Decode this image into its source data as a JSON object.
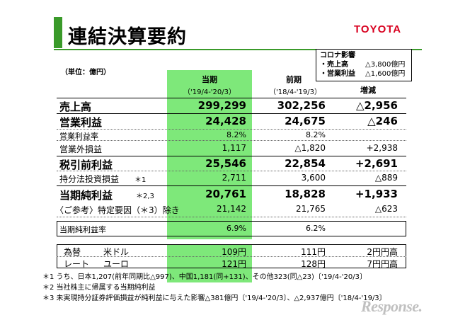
{
  "title": "連結決算要約",
  "logo": "TOYOTA",
  "corona": {
    "title": "コロナ影響",
    "items": [
      {
        "label": "・売上高",
        "value": "△3,800億円"
      },
      {
        "label": "・営業利益",
        "value": "△1,600億円"
      }
    ]
  },
  "unit": "（単位：億円）",
  "columns": {
    "current": {
      "label": "当期",
      "period": "（'19/4-'20/3）"
    },
    "previous": {
      "label": "前期",
      "period": "（'18/4-'19/3）"
    },
    "change": {
      "label": "増減"
    }
  },
  "rows": [
    {
      "label": "売上高",
      "note": "",
      "current": "299,299",
      "previous": "302,256",
      "change": "△2,956"
    },
    {
      "label": "営業利益",
      "note": "",
      "current": "24,428",
      "previous": "24,675",
      "change": "△246"
    },
    {
      "label": "営業利益率",
      "note": "",
      "current": "8.2%",
      "previous": "8.2%",
      "change": ""
    },
    {
      "label": "営業外損益",
      "note": "",
      "current": "1,117",
      "previous": "△1,820",
      "change": "+2,938"
    },
    {
      "label": "税引前利益",
      "note": "",
      "current": "25,546",
      "previous": "22,854",
      "change": "+2,691"
    },
    {
      "label": "持分法投資損益",
      "note": "＊1",
      "current": "2,711",
      "previous": "3,600",
      "change": "△889"
    },
    {
      "label": "当期純利益",
      "note": "＊2,3",
      "current": "20,761",
      "previous": "18,828",
      "change": "+1,933"
    },
    {
      "label": "〈ご参考〉特定要因（＊3）除き",
      "note": "",
      "current": "21,142",
      "previous": "21,765",
      "change": "△623"
    },
    {
      "label": "当期純利益率",
      "note": "",
      "current": "6.9%",
      "previous": "6.2%",
      "change": ""
    }
  ],
  "fx": {
    "label1": "為替",
    "label2": "レート",
    "items": [
      {
        "currency": "米ドル",
        "current": "109円",
        "previous": "111円",
        "change": "2円円高"
      },
      {
        "currency": "ユーロ",
        "current": "121円",
        "previous": "128円",
        "change": "7円円高"
      }
    ]
  },
  "notes": [
    "＊1 うち、日本1,207(前年同期比△997)、中国1,181(同+131)、その他323(同△23)〔'19/4-'20/3〕",
    "＊2 当社株主に帰属する当期純利益",
    "＊3 未実現持分証券評価損益が純利益に与えた影響△381億円〔'19/4-'20/3〕、△2,937億円〔'18/4-'19/3〕"
  ],
  "watermark": "Response."
}
